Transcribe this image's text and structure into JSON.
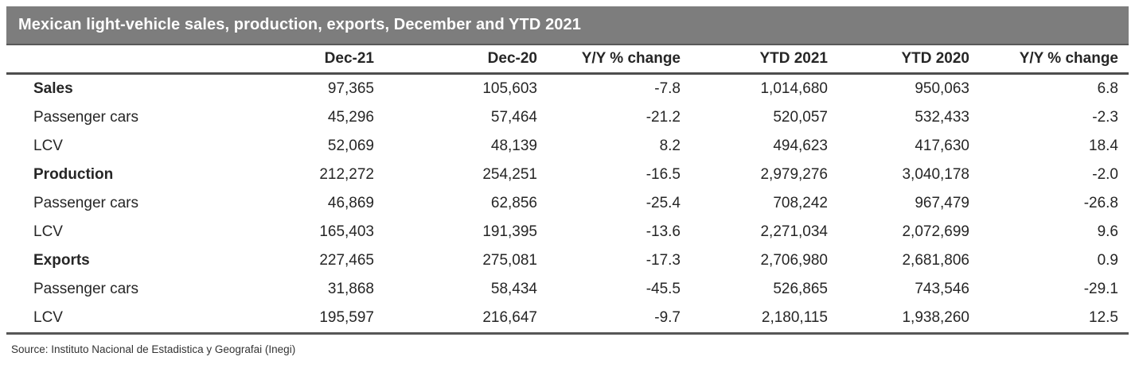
{
  "title_bar": {
    "title": "Mexican light-vehicle sales, production, exports, December and YTD 2021"
  },
  "colors": {
    "title_bar_bg": "#7d7d7d",
    "title_bar_text": "#ffffff",
    "rule_dark": "#4d4d4d",
    "body_text": "#262626"
  },
  "chart_data": {
    "type": "table",
    "title": "Mexican light-vehicle sales, production, exports, December and YTD 2021",
    "columns": [
      "",
      "Dec-21",
      "Dec-20",
      "Y/Y % change",
      "YTD 2021",
      "YTD 2020",
      "Y/Y % change"
    ],
    "rows": [
      {
        "label": "Sales",
        "section": true,
        "values": [
          "97,365",
          "105,603",
          "-7.8",
          "1,014,680",
          "950,063",
          "6.8"
        ]
      },
      {
        "label": "Passenger cars",
        "section": false,
        "values": [
          "45,296",
          "57,464",
          "-21.2",
          "520,057",
          "532,433",
          "-2.3"
        ]
      },
      {
        "label": "LCV",
        "section": false,
        "values": [
          "52,069",
          "48,139",
          "8.2",
          "494,623",
          "417,630",
          "18.4"
        ]
      },
      {
        "label": "Production",
        "section": true,
        "values": [
          "212,272",
          "254,251",
          "-16.5",
          "2,979,276",
          "3,040,178",
          "-2.0"
        ]
      },
      {
        "label": "Passenger cars",
        "section": false,
        "values": [
          "46,869",
          "62,856",
          "-25.4",
          "708,242",
          "967,479",
          "-26.8"
        ]
      },
      {
        "label": "LCV",
        "section": false,
        "values": [
          "165,403",
          "191,395",
          "-13.6",
          "2,271,034",
          "2,072,699",
          "9.6"
        ]
      },
      {
        "label": "Exports",
        "section": true,
        "values": [
          "227,465",
          "275,081",
          "-17.3",
          "2,706,980",
          "2,681,806",
          "0.9"
        ]
      },
      {
        "label": "Passenger cars",
        "section": false,
        "values": [
          "31,868",
          "58,434",
          "-45.5",
          "526,865",
          "743,546",
          "-29.1"
        ]
      },
      {
        "label": "LCV",
        "section": false,
        "values": [
          "195,597",
          "216,647",
          "-9.7",
          "2,180,115",
          "1,938,260",
          "12.5"
        ]
      }
    ]
  },
  "footer": {
    "source": "Source: Instituto Nacional de Estadistica y Geografai (Inegi)"
  }
}
